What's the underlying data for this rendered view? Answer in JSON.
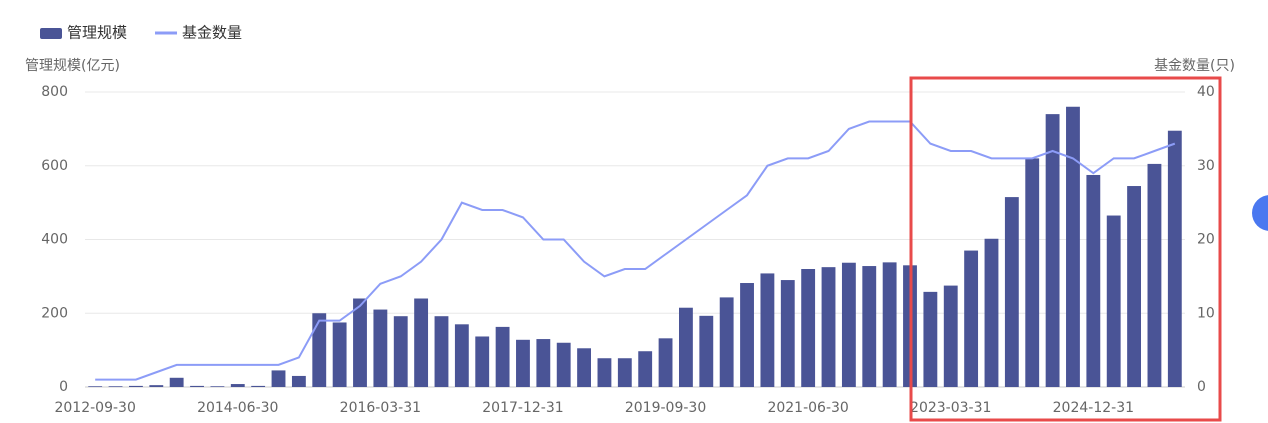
{
  "chart_data": {
    "type": "bar_line",
    "categories": [
      "2012-09-30",
      null,
      null,
      null,
      null,
      null,
      null,
      "2014-06-30",
      null,
      null,
      null,
      null,
      null,
      null,
      "2016-03-31",
      null,
      null,
      null,
      null,
      null,
      null,
      "2017-12-31",
      null,
      null,
      null,
      null,
      null,
      null,
      "2019-09-30",
      null,
      null,
      null,
      null,
      null,
      null,
      "2021-06-30",
      null,
      null,
      null,
      null,
      null,
      null,
      "2023-03-31",
      null,
      null,
      null,
      null,
      null,
      null,
      "2024-12-31",
      null,
      null,
      null,
      null
    ],
    "series": [
      {
        "name": "管理规模",
        "color": "#4a5496",
        "axis": "y",
        "values": [
          2,
          2,
          3,
          5,
          25,
          3,
          2,
          8,
          3,
          45,
          30,
          200,
          175,
          240,
          210,
          192,
          240,
          192,
          170,
          137,
          163,
          128,
          130,
          120,
          105,
          78,
          78,
          97,
          132,
          215,
          193,
          243,
          282,
          308,
          290,
          320,
          325,
          337,
          328,
          338,
          330,
          258,
          275,
          370,
          402,
          515,
          620,
          740,
          760,
          575,
          465,
          545,
          605,
          695
        ]
      },
      {
        "name": "基金数量",
        "color": "#8c9cf7",
        "axis": "y2",
        "values": [
          1,
          1,
          1,
          2,
          3,
          3,
          3,
          3,
          3,
          3,
          4,
          9,
          9,
          11,
          14,
          15,
          17,
          20,
          25,
          24,
          24,
          23,
          20,
          20,
          17,
          15,
          16,
          16,
          18,
          20,
          22,
          24,
          26,
          30,
          31,
          31,
          32,
          35,
          36,
          36,
          36,
          33,
          32,
          32,
          31,
          31,
          31,
          32,
          31,
          29,
          31,
          31,
          32,
          33
        ]
      }
    ],
    "y_label": "管理规模(亿元)",
    "y2_label": "基金数量(只)",
    "ylim": [
      0,
      800
    ],
    "yticks": [
      0,
      200,
      400,
      600,
      800
    ],
    "y2lim": [
      0,
      40
    ],
    "y2ticks": [
      0,
      10,
      20,
      30,
      40
    ],
    "grid": true
  }
}
